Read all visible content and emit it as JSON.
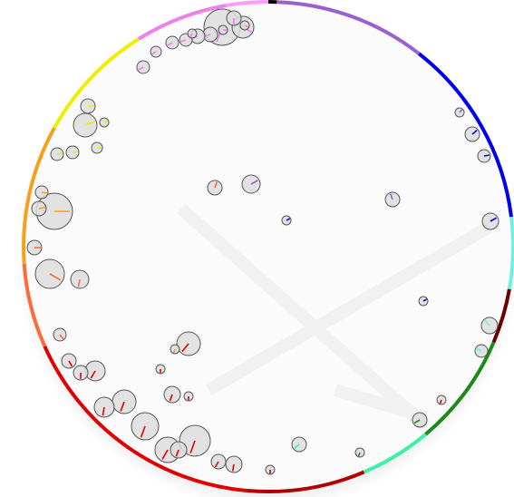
{
  "diagram": {
    "type": "radial color bubble plot",
    "ring_arcs": [
      {
        "color": "#000000"
      },
      {
        "color": "#9a5fd0"
      },
      {
        "color": "#0000ee"
      },
      {
        "color": "#70f0e0"
      },
      {
        "color": "#6b0000"
      },
      {
        "color": "#1a8a1a"
      },
      {
        "color": "#40f0a8"
      },
      {
        "color": "#b00000"
      },
      {
        "color": "#e00000"
      },
      {
        "color": "#ff6a3a"
      },
      {
        "color": "#f7a020"
      },
      {
        "color": "#eeee00"
      },
      {
        "color": "#ee80ee"
      },
      {
        "color": "#ff9aff"
      }
    ],
    "bubbles": [
      {
        "color": "#dddddd",
        "tick": "#ee80ee"
      },
      {
        "color": "#dddddd",
        "tick": "#ee80ee"
      },
      {
        "color": "#dddddd",
        "tick": "#ee80ee"
      },
      {
        "color": "#dddddd",
        "tick": "#ee80ee"
      },
      {
        "color": "#dddddd",
        "tick": "#ee80ee"
      },
      {
        "color": "#dddddd",
        "tick": "#ee80ee"
      },
      {
        "color": "#dddddd",
        "tick": "#ee80ee"
      },
      {
        "color": "#dddddd",
        "tick": "#ee80ee"
      },
      {
        "color": "#dddddd",
        "tick": "#ee80ee"
      },
      {
        "color": "#dddddd",
        "tick": "#ee80ee"
      },
      {
        "color": "#dddddd",
        "tick": "#ee80ee"
      },
      {
        "color": "#dddddd",
        "tick": "#ee80ee"
      },
      {
        "color": "#dddddd",
        "tick": "#eeee00"
      },
      {
        "color": "#dddddd",
        "tick": "#eeee00"
      },
      {
        "color": "#dddddd",
        "tick": "#eeee00"
      },
      {
        "color": "#dddddd",
        "tick": "#eeee00"
      },
      {
        "color": "#dddddd",
        "tick": "#eeee00"
      },
      {
        "color": "#dddddd",
        "tick": "#eeee00"
      },
      {
        "color": "#dddddd",
        "tick": "#f7a020"
      },
      {
        "color": "#dddddd",
        "tick": "#f7a020"
      },
      {
        "color": "#dddddd",
        "tick": "#f7a020"
      },
      {
        "color": "#dddddd",
        "tick": "#ff6a3a"
      },
      {
        "color": "#dddddd",
        "tick": "#ff6a3a"
      },
      {
        "color": "#dddddd",
        "tick": "#ff6a3a"
      },
      {
        "color": "#dddddd",
        "tick": "#ff6a3a"
      },
      {
        "color": "#dddddd",
        "tick": "#e00000"
      },
      {
        "color": "#dddddd",
        "tick": "#e00000"
      },
      {
        "color": "#dddddd",
        "tick": "#e00000"
      },
      {
        "color": "#dddddd",
        "tick": "#e00000"
      },
      {
        "color": "#dddddd",
        "tick": "#e00000"
      },
      {
        "color": "#dddddd",
        "tick": "#e00000"
      },
      {
        "color": "#dddddd",
        "tick": "#e00000"
      },
      {
        "color": "#dddddd",
        "tick": "#e00000"
      },
      {
        "color": "#dddddd",
        "tick": "#e00000"
      },
      {
        "color": "#dddddd",
        "tick": "#e00000"
      },
      {
        "color": "#dddddd",
        "tick": "#b00000"
      },
      {
        "color": "#dddddd",
        "tick": "#40f0a8"
      },
      {
        "color": "#dddddd",
        "tick": "#1a8a1a"
      },
      {
        "color": "#dddddd",
        "tick": "#1a8a1a"
      },
      {
        "color": "#dddddd",
        "tick": "#70f0e0"
      },
      {
        "color": "#dddddd",
        "tick": "#70f0e0"
      },
      {
        "color": "#dddddd",
        "tick": "#0000ee"
      },
      {
        "color": "#dddddd",
        "tick": "#0000ee"
      },
      {
        "color": "#dddddd",
        "tick": "#0000ee"
      },
      {
        "color": "#dddddd",
        "tick": "#0000ee"
      },
      {
        "color": "#dddddd",
        "tick": "#9a5fd0"
      },
      {
        "color": "#dddddd",
        "tick": "#9a5fd0"
      },
      {
        "color": "#dddddd",
        "tick": "#0000ee"
      },
      {
        "color": "#dddddd",
        "tick": "#9a5fd0"
      },
      {
        "color": "#dddddd",
        "tick": "#ff6a3a"
      },
      {
        "color": "#dddddd",
        "tick": "#e00000"
      },
      {
        "color": "#dddddd",
        "tick": "#e00000"
      },
      {
        "color": "#dddddd",
        "tick": "#e00000"
      },
      {
        "color": "#dddddd",
        "tick": "#e00000"
      },
      {
        "color": "#dddddd",
        "tick": "#f7a020"
      },
      {
        "color": "#dddddd",
        "tick": "#e00000"
      },
      {
        "color": "#dddddd",
        "tick": "#e00000"
      }
    ]
  }
}
